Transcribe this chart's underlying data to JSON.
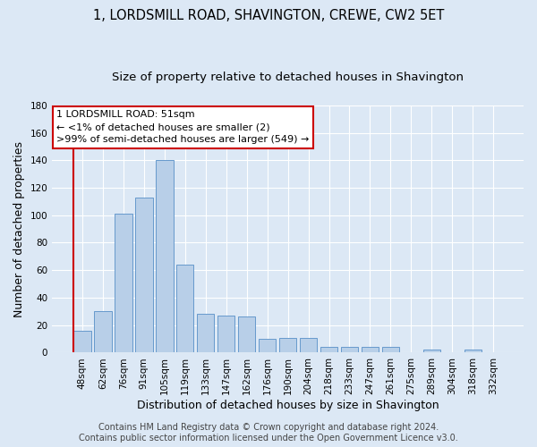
{
  "title": "1, LORDSMILL ROAD, SHAVINGTON, CREWE, CW2 5ET",
  "subtitle": "Size of property relative to detached houses in Shavington",
  "xlabel": "Distribution of detached houses by size in Shavington",
  "ylabel": "Number of detached properties",
  "bar_values": [
    16,
    30,
    101,
    113,
    140,
    64,
    28,
    27,
    26,
    10,
    11,
    11,
    4,
    4,
    4,
    4,
    0,
    2,
    0,
    2,
    0
  ],
  "bar_labels": [
    "48sqm",
    "62sqm",
    "76sqm",
    "91sqm",
    "105sqm",
    "119sqm",
    "133sqm",
    "147sqm",
    "162sqm",
    "176sqm",
    "190sqm",
    "204sqm",
    "218sqm",
    "233sqm",
    "247sqm",
    "261sqm",
    "275sqm",
    "289sqm",
    "304sqm",
    "318sqm",
    "332sqm"
  ],
  "bar_color": "#b8cfe8",
  "bar_edge_color": "#6699cc",
  "highlight_color": "#cc0000",
  "ylim": [
    0,
    180
  ],
  "yticks": [
    0,
    20,
    40,
    60,
    80,
    100,
    120,
    140,
    160,
    180
  ],
  "annotation_title": "1 LORDSMILL ROAD: 51sqm",
  "annotation_line1": "← <1% of detached houses are smaller (2)",
  "annotation_line2": ">99% of semi-detached houses are larger (549) →",
  "annotation_box_color": "#ffffff",
  "annotation_border_color": "#cc0000",
  "bg_color": "#dce8f5",
  "plot_bg_color": "#dce8f5",
  "footer_line1": "Contains HM Land Registry data © Crown copyright and database right 2024.",
  "footer_line2": "Contains public sector information licensed under the Open Government Licence v3.0.",
  "title_fontsize": 10.5,
  "subtitle_fontsize": 9.5,
  "ylabel_fontsize": 9,
  "xlabel_fontsize": 9,
  "tick_fontsize": 7.5,
  "annotation_fontsize": 8,
  "footer_fontsize": 7
}
